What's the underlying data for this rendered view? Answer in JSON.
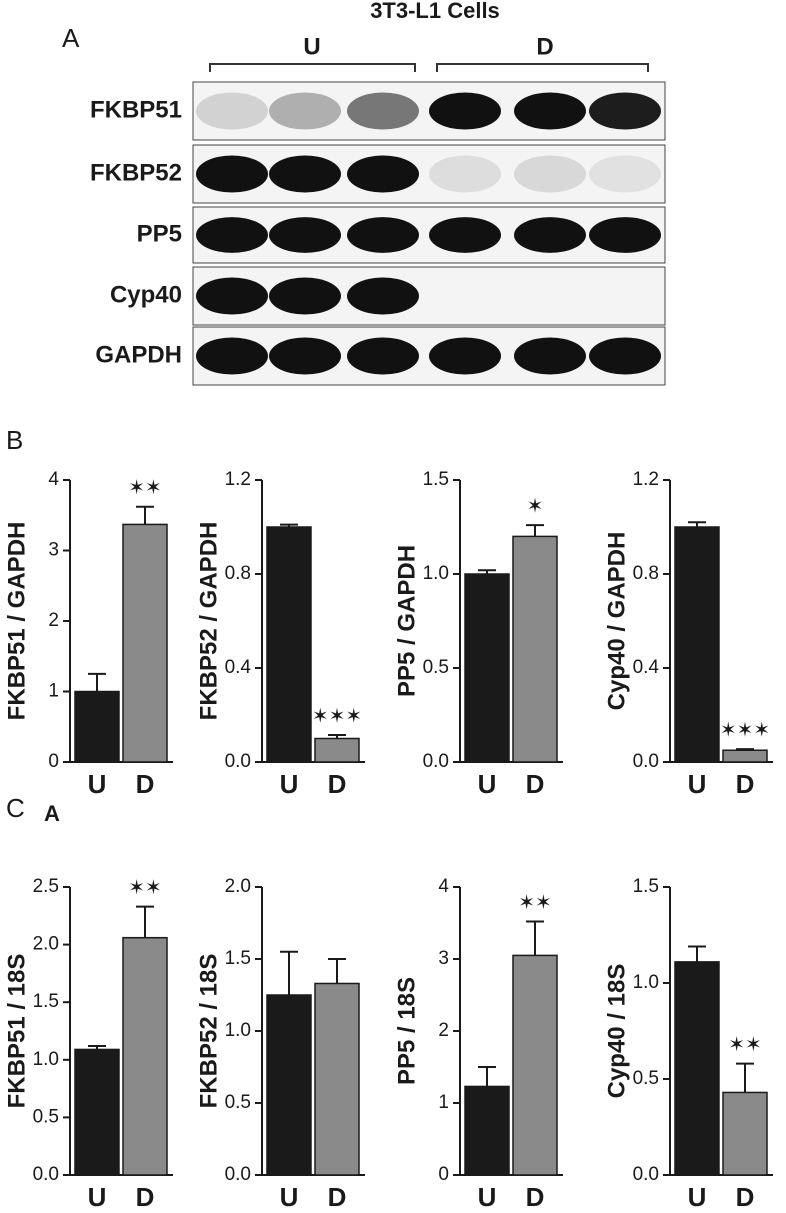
{
  "panels": {
    "a": "A",
    "b": "B",
    "c": "C",
    "c_sub": "A"
  },
  "blot": {
    "title": "3T3-L1 Cells",
    "groups": [
      "U",
      "D"
    ],
    "rows": [
      "FKBP51",
      "FKBP52",
      "PP5",
      "Cyp40",
      "GAPDH"
    ]
  },
  "chart_data": [
    {
      "type": "bar",
      "ylabel": "FKBP51 / GAPDH",
      "categories": [
        "U",
        "D"
      ],
      "values": [
        1.0,
        3.37
      ],
      "errors": [
        0.25,
        0.25
      ],
      "colors": [
        "#1a1a1a",
        "#8a8a8a"
      ],
      "ylim": [
        0,
        4
      ],
      "yticks": [
        0,
        1,
        2,
        3,
        4
      ],
      "annotation": "✶✶"
    },
    {
      "type": "bar",
      "ylabel": "FKBP52 / GAPDH",
      "categories": [
        "U",
        "D"
      ],
      "values": [
        1.0,
        0.1
      ],
      "errors": [
        0.01,
        0.015
      ],
      "colors": [
        "#1a1a1a",
        "#8a8a8a"
      ],
      "ylim": [
        0,
        1.2
      ],
      "yticks": [
        {
          "value": 0,
          "label": "0.0"
        },
        0.4,
        0.8,
        1.2
      ],
      "annotation": "✶✶✶"
    },
    {
      "type": "bar",
      "ylabel": "PP5 / GAPDH",
      "categories": [
        "U",
        "D"
      ],
      "values": [
        1.0,
        1.2
      ],
      "errors": [
        0.02,
        0.06
      ],
      "colors": [
        "#1a1a1a",
        "#8a8a8a"
      ],
      "ylim": [
        0,
        1.5
      ],
      "yticks": [
        {
          "value": 0,
          "label": "0.0"
        },
        0.5,
        {
          "value": 1,
          "label": "1.0"
        },
        1.5
      ],
      "annotation": "✶"
    },
    {
      "type": "bar",
      "ylabel": "Cyp40 / GAPDH",
      "categories": [
        "U",
        "D"
      ],
      "values": [
        1.0,
        0.05
      ],
      "errors": [
        0.02,
        0.005
      ],
      "colors": [
        "#1a1a1a",
        "#8a8a8a"
      ],
      "ylim": [
        0,
        1.2
      ],
      "yticks": [
        {
          "value": 0,
          "label": "0.0"
        },
        0.4,
        0.8,
        1.2
      ],
      "annotation": "✶✶✶"
    },
    {
      "type": "bar",
      "ylabel": "FKBP51 / 18S",
      "categories": [
        "U",
        "D"
      ],
      "values": [
        1.09,
        2.06
      ],
      "errors": [
        0.03,
        0.27
      ],
      "colors": [
        "#1a1a1a",
        "#8a8a8a"
      ],
      "ylim": [
        0,
        2.5
      ],
      "yticks": [
        {
          "value": 0,
          "label": "0.0"
        },
        0.5,
        {
          "value": 1,
          "label": "1.0"
        },
        1.5,
        {
          "value": 2,
          "label": "2.0"
        },
        2.5
      ],
      "annotation": "✶✶"
    },
    {
      "type": "bar",
      "ylabel": "FKBP52 / 18S",
      "categories": [
        "U",
        "D"
      ],
      "values": [
        1.25,
        1.33
      ],
      "errors": [
        0.3,
        0.17
      ],
      "colors": [
        "#1a1a1a",
        "#8a8a8a"
      ],
      "ylim": [
        0,
        2
      ],
      "yticks": [
        {
          "value": 0,
          "label": "0.0"
        },
        0.5,
        {
          "value": 1,
          "label": "1.0"
        },
        1.5,
        {
          "value": 2,
          "label": "2.0"
        }
      ]
    },
    {
      "type": "bar",
      "ylabel": "PP5 / 18S",
      "categories": [
        "U",
        "D"
      ],
      "values": [
        1.23,
        3.05
      ],
      "errors": [
        0.27,
        0.47
      ],
      "colors": [
        "#1a1a1a",
        "#8a8a8a"
      ],
      "ylim": [
        0,
        4
      ],
      "yticks": [
        0,
        1,
        2,
        3,
        4
      ],
      "annotation": "✶✶"
    },
    {
      "type": "bar",
      "ylabel": "Cyp40 / 18S",
      "categories": [
        "U",
        "D"
      ],
      "values": [
        1.11,
        0.43
      ],
      "errors": [
        0.08,
        0.15
      ],
      "colors": [
        "#1a1a1a",
        "#8a8a8a"
      ],
      "ylim": [
        0,
        1.5
      ],
      "yticks": [
        {
          "value": 0,
          "label": "0.0"
        },
        0.5,
        {
          "value": 1,
          "label": "1.0"
        },
        1.5
      ],
      "annotation": "✶✶"
    }
  ]
}
